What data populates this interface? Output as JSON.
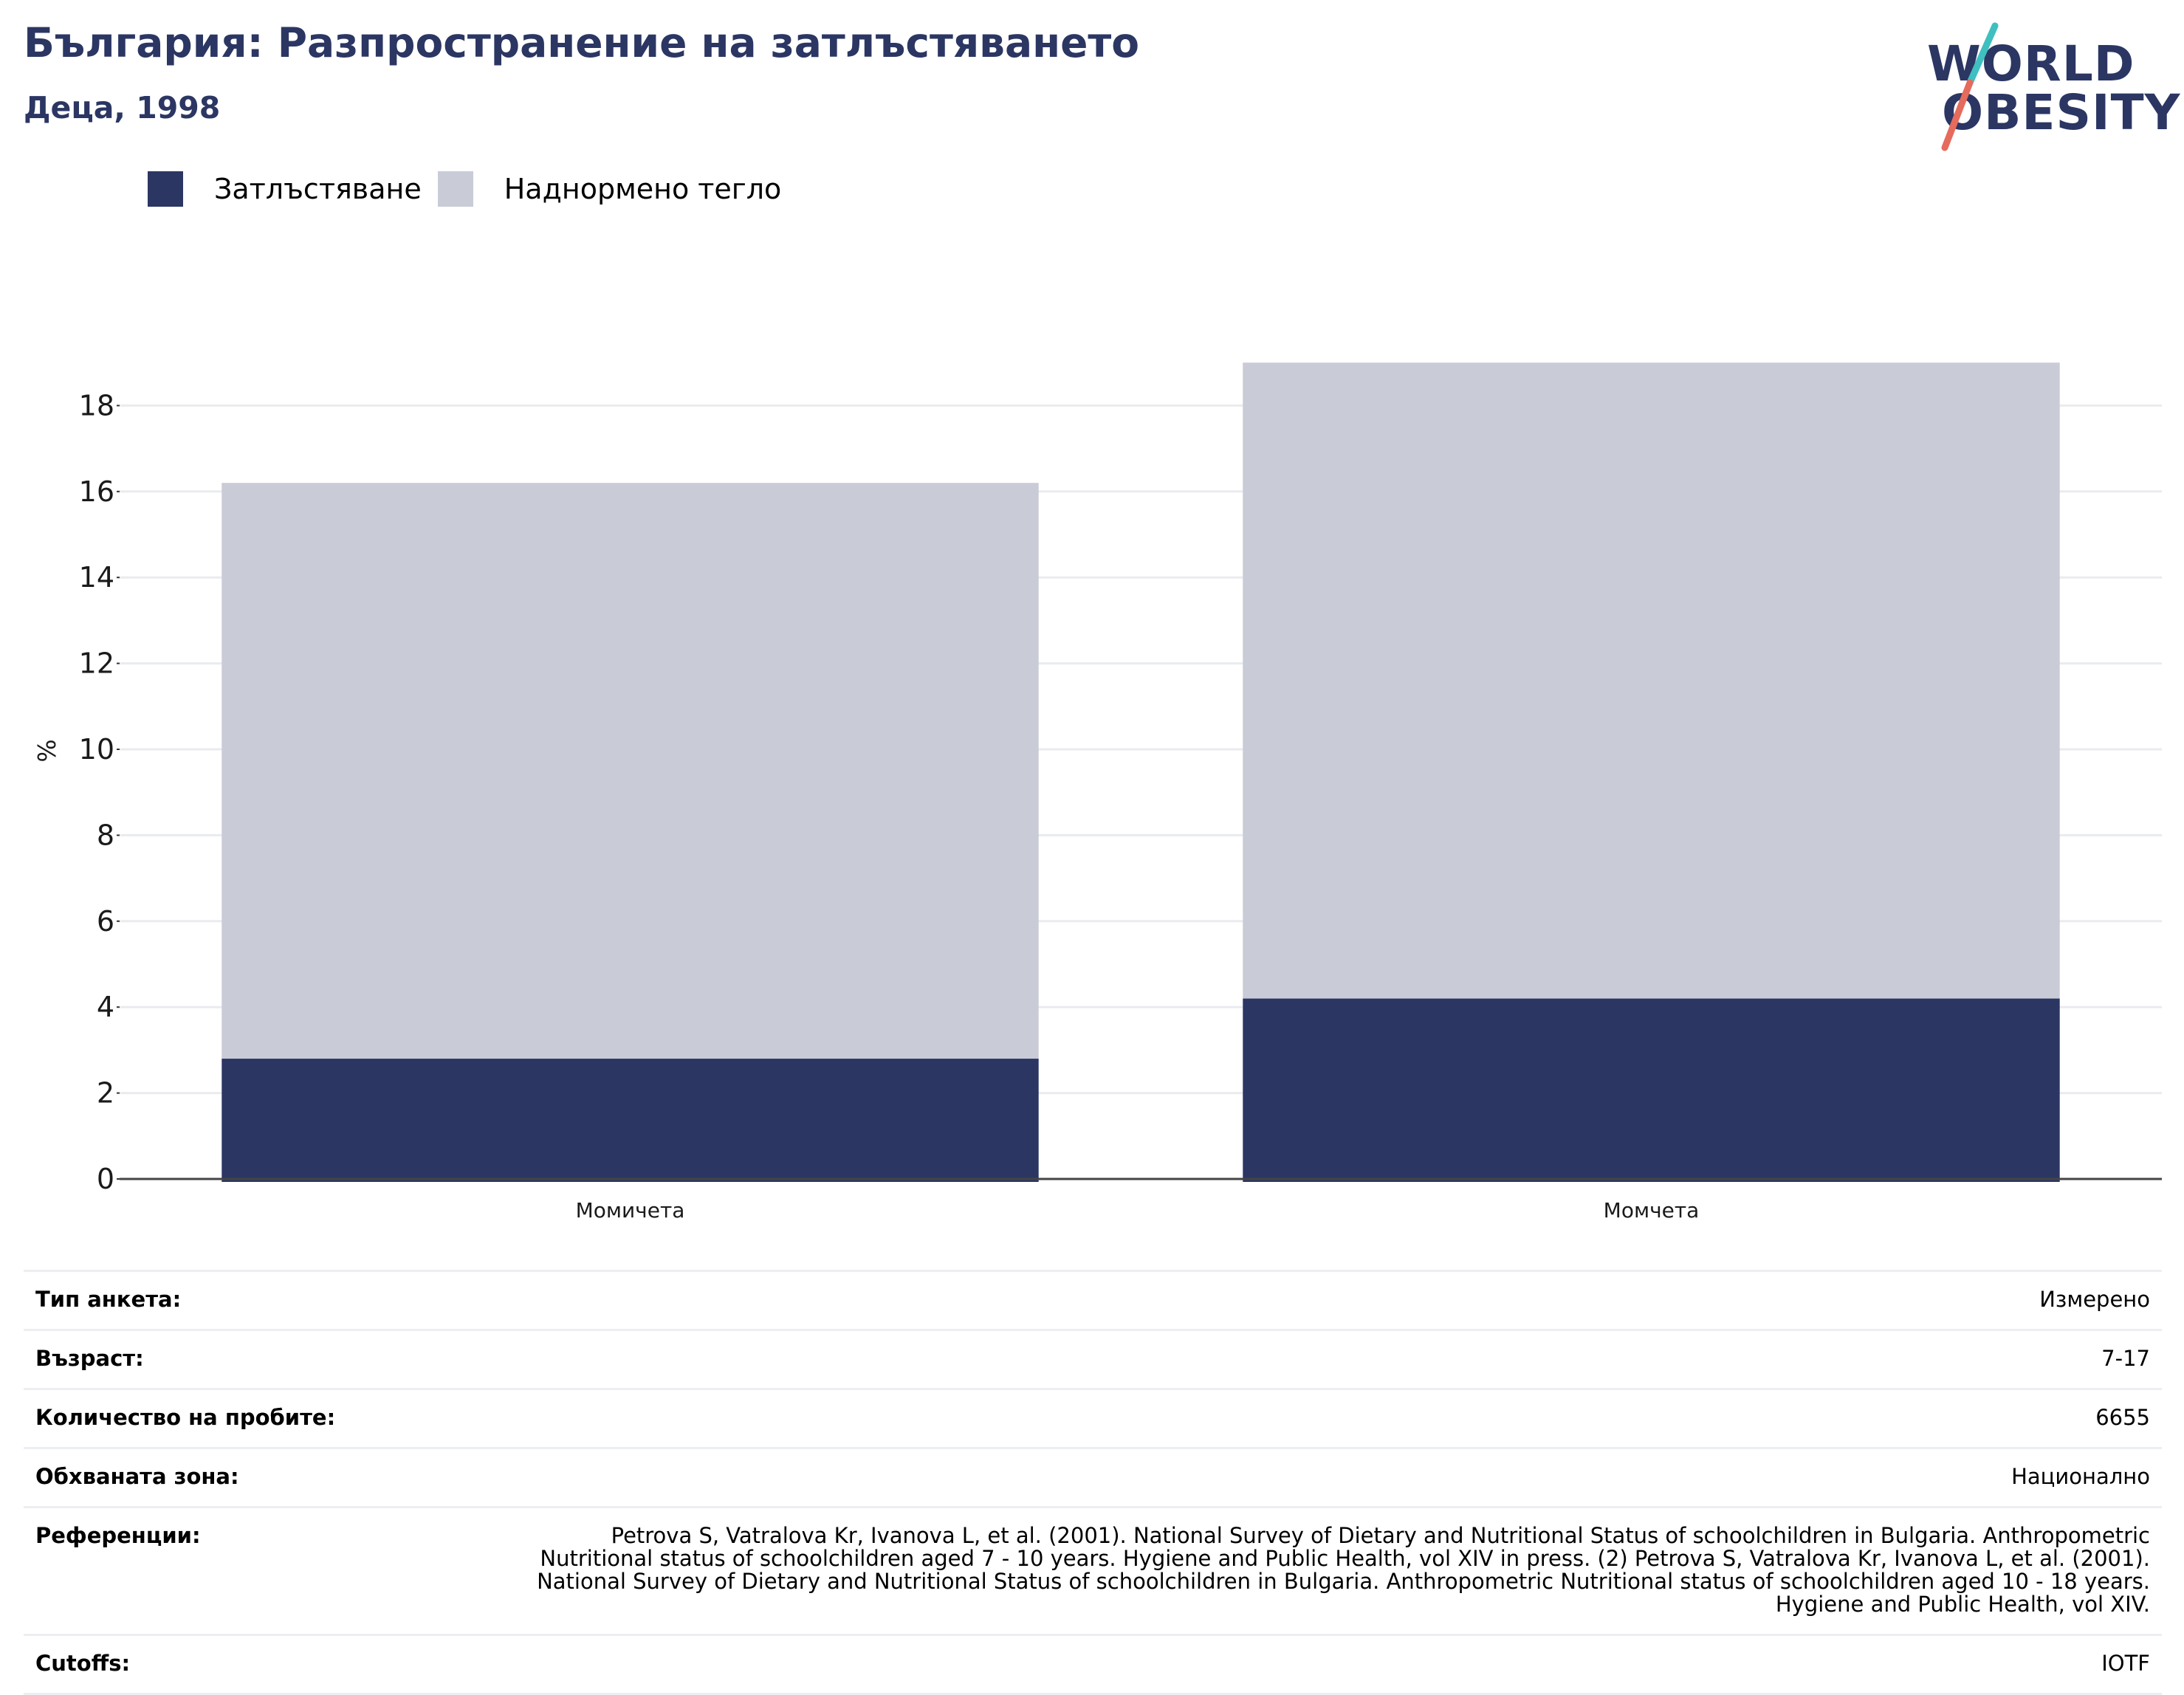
{
  "header": {
    "title": "България: Разпространение на затлъстяването",
    "subtitle": "Деца, 1998"
  },
  "logo": {
    "line1": "WORLD",
    "line2": "OBESITY",
    "colors": {
      "text": "#2b3663",
      "slash_top": "#3fbfbf",
      "slash_bottom": "#e56b5d"
    }
  },
  "legend": [
    {
      "label": "Затлъстяване",
      "color": "#2b3663"
    },
    {
      "label": "Наднормено тегло",
      "color": "#c9cbd7"
    }
  ],
  "chart_data": {
    "type": "bar",
    "stacked": true,
    "categories": [
      "Момичета",
      "Момчета"
    ],
    "series": [
      {
        "name": "Затлъстяване",
        "values": [
          2.8,
          4.2
        ],
        "color": "#2b3663"
      },
      {
        "name": "Наднормено тегло",
        "values": [
          13.4,
          14.8
        ],
        "color": "#c9cbd7"
      }
    ],
    "ylabel": "%",
    "ylim": [
      0,
      19
    ],
    "yticks": [
      0,
      2,
      4,
      6,
      8,
      10,
      12,
      14,
      16,
      18
    ],
    "grid": true,
    "legend_position": "top-left"
  },
  "info": [
    {
      "label": "Тип анкета:",
      "value": "Измерено"
    },
    {
      "label": "Възраст:",
      "value": "7-17"
    },
    {
      "label": "Количество на пробите:",
      "value": "6655"
    },
    {
      "label": "Обхваната зона:",
      "value": "Национално"
    },
    {
      "label": "Референции:",
      "value": "Petrova S, Vatralova Kr, Ivanova L, et al. (2001). National Survey of Dietary and Nutritional Status of schoolchildren in Bulgaria. Anthropometric Nutritional status of schoolchildren aged 7 - 10 years. Hygiene and Public Health, vol XIV in press. (2) Petrova S, Vatralova Kr, Ivanova L, et al. (2001). National Survey of Dietary and Nutritional Status of schoolchildren in Bulgaria. Anthropometric Nutritional status of schoolchildren aged 10 - 18 years. Hygiene and Public Health, vol XIV."
    },
    {
      "label": "Cutoffs:",
      "value": "IOTF"
    }
  ]
}
